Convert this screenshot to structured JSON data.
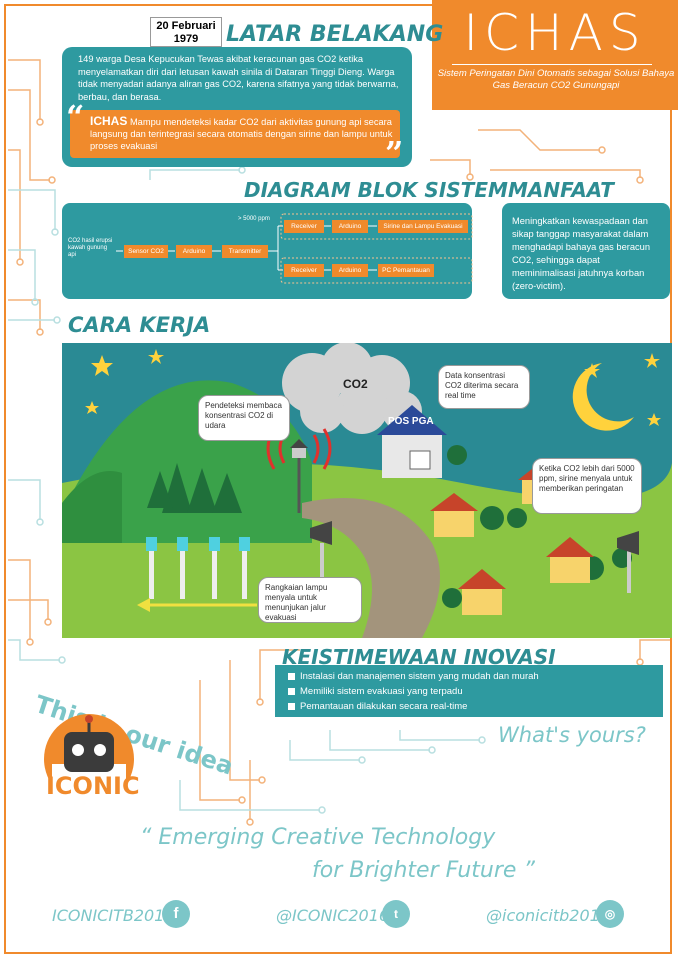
{
  "header": {
    "title": "ICHAS",
    "subtitle": "Sistem Peringatan Dini Otomatis sebagai Solusi Bahaya Gas Beracun CO2 Gunungapi"
  },
  "latar": {
    "date": "20 Februari 1979",
    "heading": "LATAR BELAKANG",
    "paragraph": "149 warga Desa Kepucukan Tewas akibat keracunan gas CO2 ketika menyelamatkan diri dari letusan kawah sinila di Dataran Tinggi Dieng. Warga tidak menyadari adanya aliran gas CO2, karena sifatnya yang tidak berwarna, berbau, dan berasa.",
    "quote_name": "ICHAS",
    "quote_text": "Mampu mendeteksi kadar CO2 dari aktivitas gunung api secara langsung dan terintegrasi secara otomatis dengan sirine dan lampu untuk proses evakuasi"
  },
  "diagram": {
    "heading": "DIAGRAM BLOK SISTEM",
    "input_label": "CO2 hasil erupsi kawah gunung api",
    "sensor": "Sensor CO2",
    "arduino": "Arduino",
    "transmitter": "Transmitter",
    "threshold": "> 5000 ppm",
    "receiver": "Receiver",
    "out1": "Sirine dan Lampu Evakuasi",
    "out2": "PC Pemantauan"
  },
  "manfaat": {
    "heading": "MANFAAT",
    "text": "Meningkatkan kewaspadaan dan sikap tanggap masyarakat dalam menghadapi bahaya gas beracun CO2, sehingga dapat meminimalisasi jatuhnya korban (zero-victim)."
  },
  "cara": {
    "heading": "CARA KERJA",
    "co2_label": "CO2",
    "pos_label": "POS PGA",
    "callout_sensor": "Pendeteksi membaca konsentrasi CO2 di udara",
    "callout_data": "Data konsentrasi CO2 diterima secara real time",
    "callout_siren": "Ketika CO2 lebih dari 5000 ppm, sirine menyala untuk memberikan peringatan",
    "callout_lamp": "Rangkaian lampu menyala untuk menunjukan jalur evakuasi"
  },
  "keistimewaan": {
    "heading": "KEISTIMEWAAN INOVASI",
    "items": [
      "Instalasi dan manajemen sistem yang mudah dan murah",
      "Memiliki sistem evakuasi yang terpadu",
      "Pemantauan dilakukan secara real-time"
    ]
  },
  "footer": {
    "this_is": "This is our idea",
    "whats_yours": "What's yours?",
    "logo_text": "ICONIC",
    "tagline_1": "“ Emerging Creative Technology",
    "tagline_2": "for Brighter Future ”",
    "facebook": "ICONICITB2016",
    "twitter": "@ICONIC2016",
    "instagram": "@iconicitb2016"
  },
  "colors": {
    "orange": "#f08a2c",
    "teal": "#2e9aa0",
    "light_teal": "#7cc6c8",
    "scene_bg": "#2a8a94"
  }
}
